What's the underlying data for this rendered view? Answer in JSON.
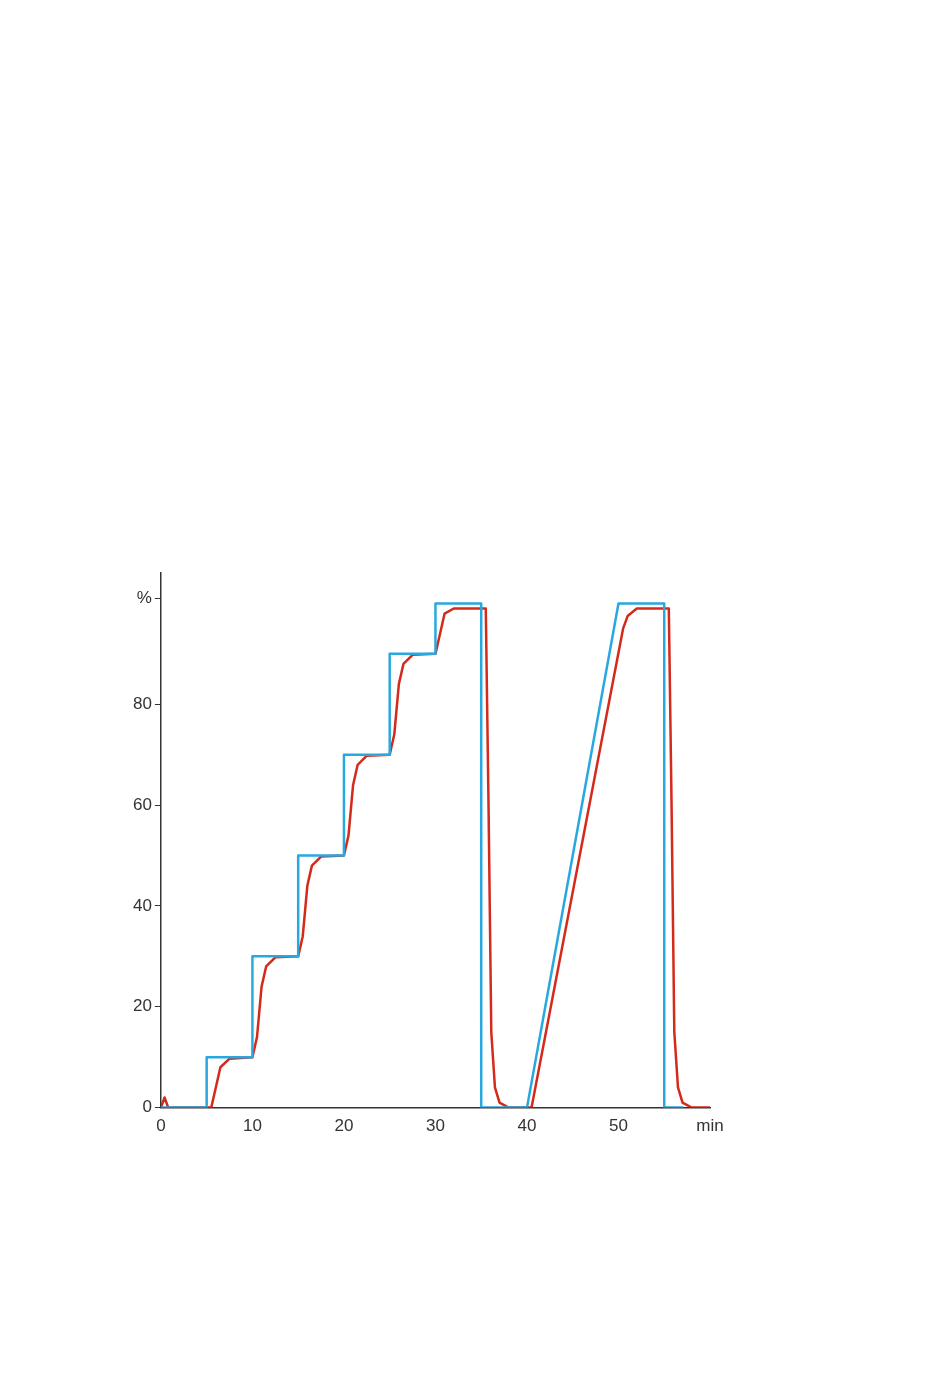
{
  "chart_data": {
    "type": "line",
    "xlim": [
      0,
      60
    ],
    "ylim": [
      0,
      106
    ],
    "xticks": [
      0,
      10,
      20,
      30,
      40,
      50,
      {
        "value": 60,
        "label": "min"
      }
    ],
    "yticks": [
      0,
      20,
      40,
      60,
      80,
      {
        "value": 101,
        "label": "%"
      }
    ],
    "grid": false,
    "legend": false,
    "marker": "none",
    "line_style": "solid",
    "series": [
      {
        "color": "#29a8e0",
        "x": [
          0,
          5,
          5,
          10,
          10,
          15,
          15,
          20,
          20,
          25,
          25,
          30,
          30,
          35,
          35,
          40,
          50,
          55,
          55,
          57
        ],
        "values": [
          0,
          0,
          10,
          10,
          30,
          30,
          50,
          50,
          70,
          70,
          90,
          90,
          100,
          100,
          0,
          0,
          100,
          100,
          0,
          0
        ]
      },
      {
        "color": "#d42a1c",
        "x": [
          0,
          0.4,
          0.8,
          5.5,
          6,
          6.5,
          7.5,
          10,
          10.5,
          11,
          11.5,
          12.5,
          15,
          15.5,
          16,
          16.5,
          17.5,
          20,
          20.5,
          21,
          21.5,
          22.5,
          25,
          25.5,
          26,
          26.5,
          27.5,
          30,
          30.5,
          31,
          32,
          35.5,
          35.8,
          36.1,
          36.5,
          37,
          38,
          40.5,
          50.5,
          51,
          52,
          55.5,
          55.8,
          56.1,
          56.5,
          57,
          58,
          60
        ],
        "values": [
          0,
          2,
          0,
          0,
          4,
          8,
          9.7,
          10,
          14,
          24,
          28,
          29.8,
          30,
          34,
          44,
          48,
          49.8,
          50,
          54,
          64,
          68,
          69.8,
          70,
          74,
          84,
          88,
          89.8,
          90,
          94,
          98,
          99,
          99,
          60,
          15,
          4,
          1,
          0,
          0,
          95,
          97.5,
          99,
          99,
          60,
          15,
          4,
          1,
          0,
          0
        ]
      }
    ]
  }
}
